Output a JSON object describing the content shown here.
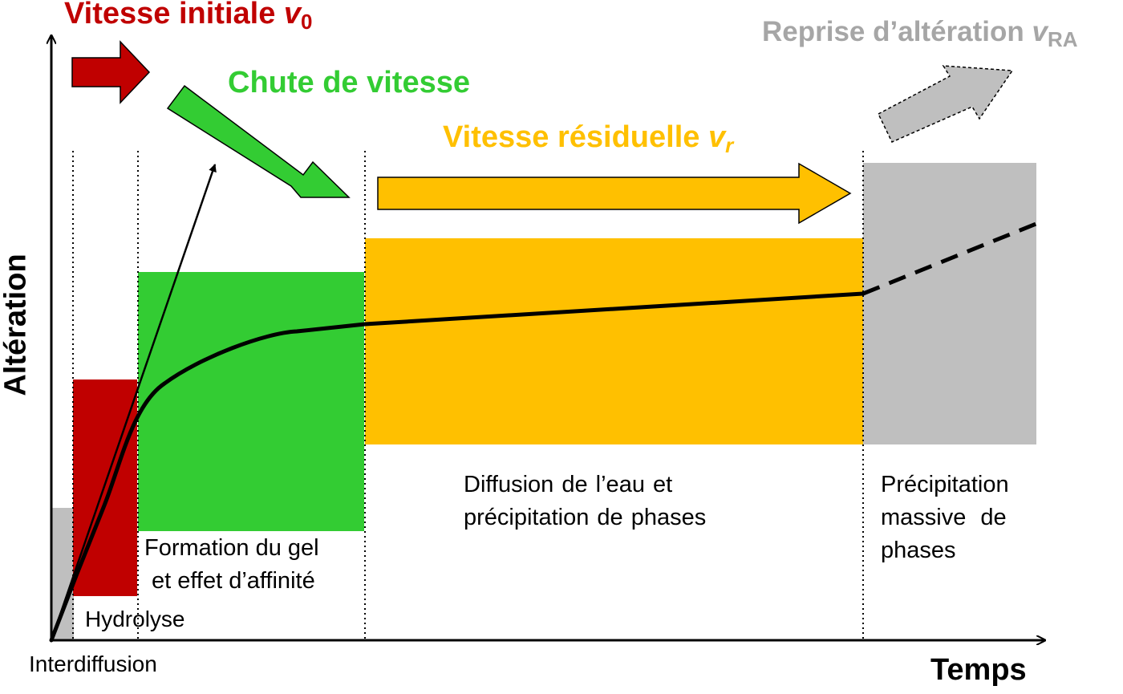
{
  "axes": {
    "x_label": "Temps",
    "y_label": "Altération"
  },
  "rates": {
    "initial": {
      "text": "Vitesse initiale ",
      "symbol": "v",
      "subscript": "0",
      "color": "#c00000"
    },
    "drop": {
      "text": "Chute de vitesse",
      "color": "#33cc33"
    },
    "residual": {
      "text": "Vitesse résiduelle ",
      "symbol": "v",
      "subscript": "r",
      "color": "#ffc000"
    },
    "resumption": {
      "text": "Reprise d’altération ",
      "symbol": "v",
      "subscript": "RA",
      "color": "#a6a6a6"
    }
  },
  "phases": {
    "interdiffusion": {
      "label": "Interdiffusion",
      "color": "#bfbfbf"
    },
    "hydrolysis": {
      "label": "Hydrolyse",
      "color": "#c00000"
    },
    "gel_formation": {
      "line1": "Formation du gel",
      "line2": "et effet d’affinité",
      "color": "#33cc33"
    },
    "water_diffusion": {
      "line1": "Diffusion de l’eau et",
      "line2": "précipitation de phases",
      "color": "#ffc000"
    },
    "massive_precipitation": {
      "line1": "Précipitation",
      "line2": "massive de",
      "line3": "phases",
      "color": "#bfbfbf"
    }
  },
  "colors": {
    "axis": "#000000",
    "curve": "#000000",
    "divider": "#000000"
  }
}
